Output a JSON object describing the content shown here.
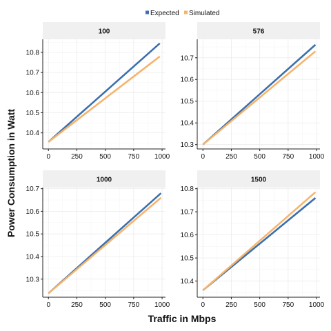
{
  "chart_data": {
    "type": "line",
    "xlabel": "Traffic in Mbps",
    "ylabel": "Power Consumption in Watt",
    "legend": {
      "position": "top",
      "entries": [
        {
          "name": "Expected",
          "color": "#3b6fad"
        },
        {
          "name": "Simulated",
          "color": "#f5b46c"
        }
      ]
    },
    "grid": true,
    "panels": [
      {
        "title": "100",
        "xlim": [
          -50,
          1030
        ],
        "ylim": [
          10.32,
          10.865
        ],
        "xticks": [
          0,
          250,
          500,
          750,
          1000
        ],
        "yticks": [
          10.4,
          10.5,
          10.6,
          10.7,
          10.8
        ],
        "series": [
          {
            "name": "Expected",
            "x": [
              0,
              980
            ],
            "y": [
              10.355,
              10.845
            ]
          },
          {
            "name": "Simulated",
            "x": [
              0,
              980
            ],
            "y": [
              10.355,
              10.78
            ]
          }
        ]
      },
      {
        "title": "576",
        "xlim": [
          -50,
          1030
        ],
        "ylim": [
          10.28,
          10.785
        ],
        "xticks": [
          0,
          250,
          500,
          750,
          1000
        ],
        "yticks": [
          10.3,
          10.4,
          10.5,
          10.6,
          10.7
        ],
        "series": [
          {
            "name": "Expected",
            "x": [
              0,
              990
            ],
            "y": [
              10.3,
              10.76
            ]
          },
          {
            "name": "Simulated",
            "x": [
              0,
              990
            ],
            "y": [
              10.3,
              10.73
            ]
          }
        ]
      },
      {
        "title": "1000",
        "xlim": [
          -50,
          1030
        ],
        "ylim": [
          10.22,
          10.705
        ],
        "xticks": [
          0,
          250,
          500,
          750,
          1000
        ],
        "yticks": [
          10.3,
          10.4,
          10.5,
          10.6,
          10.7
        ],
        "series": [
          {
            "name": "Expected",
            "x": [
              0,
              990
            ],
            "y": [
              10.237,
              10.68
            ]
          },
          {
            "name": "Simulated",
            "x": [
              0,
              990
            ],
            "y": [
              10.237,
              10.66
            ]
          }
        ]
      },
      {
        "title": "1500",
        "xlim": [
          -50,
          1030
        ],
        "ylim": [
          10.33,
          10.805
        ],
        "xticks": [
          0,
          250,
          500,
          750,
          1000
        ],
        "yticks": [
          10.4,
          10.5,
          10.6,
          10.7,
          10.8
        ],
        "series": [
          {
            "name": "Expected",
            "x": [
              0,
              990
            ],
            "y": [
              10.36,
              10.76
            ]
          },
          {
            "name": "Simulated",
            "x": [
              0,
              990
            ],
            "y": [
              10.36,
              10.785
            ]
          }
        ]
      }
    ]
  }
}
